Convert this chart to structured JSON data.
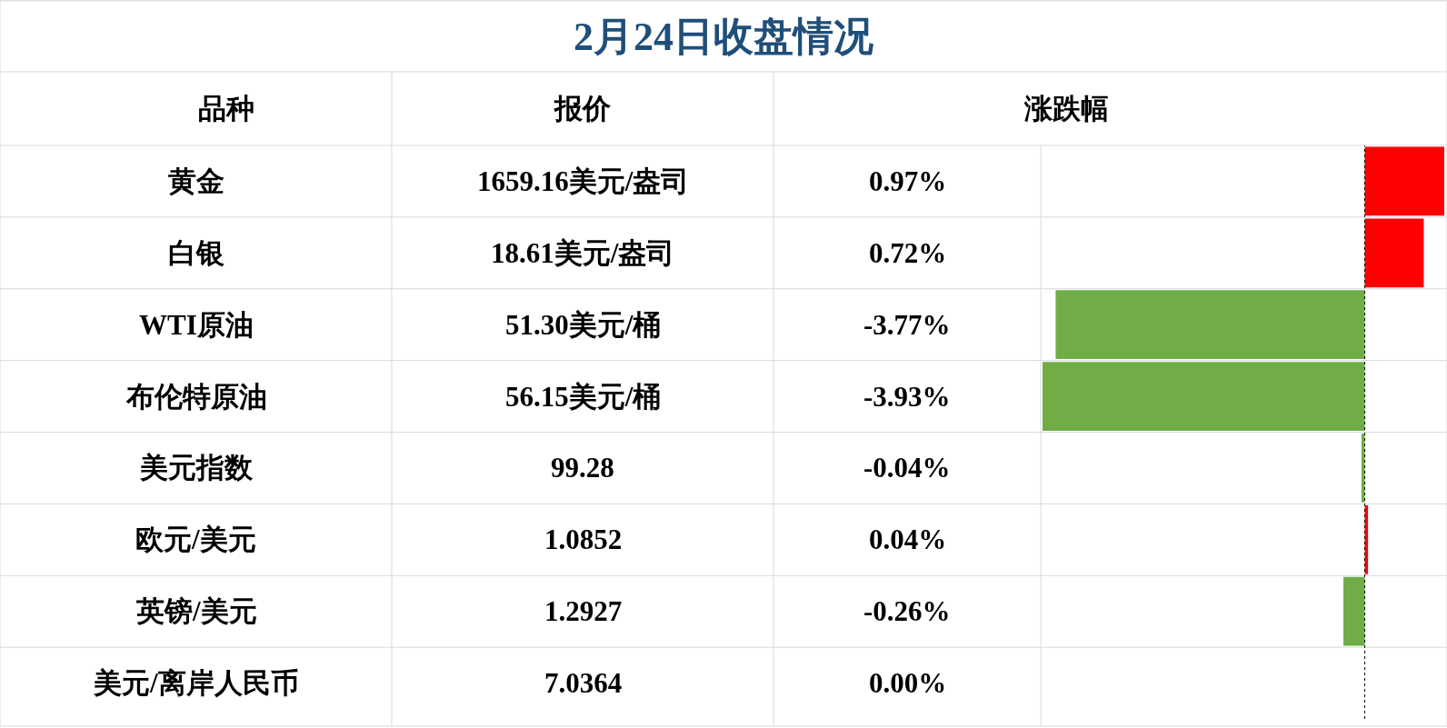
{
  "chart_data": {
    "type": "bar",
    "orientation": "horizontal",
    "title": "2月24日收盘情况",
    "ylabel": "品种",
    "xlabel": "涨跌幅",
    "categories": [
      "黄金",
      "白银",
      "WTI原油",
      "布伦特原油",
      "美元指数",
      "欧元/美元",
      "英镑/美元",
      "美元/离岸人民币"
    ],
    "values": [
      0.97,
      0.72,
      -3.77,
      -3.93,
      -0.04,
      0.04,
      -0.26,
      0.0
    ],
    "colors": [
      "#ff0000",
      "#ff0000",
      "#70ad47",
      "#70ad47",
      "#70ad47",
      "#ff0000",
      "#70ad47",
      "#ff0000"
    ],
    "value_labels": [
      "0.97%",
      "0.72%",
      "-3.77%",
      "-3.93%",
      "-0.04%",
      "0.04%",
      "-0.26%",
      "0.00%"
    ],
    "annotations": [
      "报价",
      "1659.16美元/盎司",
      "18.61美元/盎司",
      "51.30美元/桶",
      "56.15美元/桶",
      "99.28",
      "1.0852",
      "1.2927",
      "7.0364"
    ],
    "ref_lines": [
      {
        "axis": "x",
        "value": 0,
        "color": "#000000",
        "line_style": "dotted"
      }
    ],
    "grid": false,
    "legend": false
  }
}
